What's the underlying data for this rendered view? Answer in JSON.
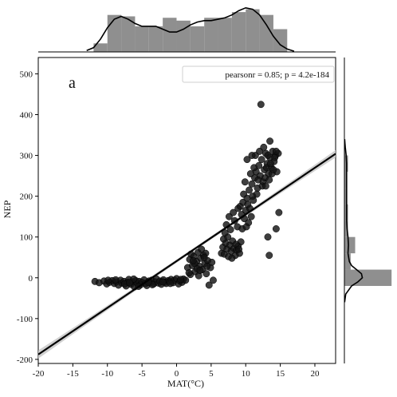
{
  "chart_data": {
    "type": "scatter",
    "panel_label": "a",
    "xlabel": "MAT(°C)",
    "ylabel": "NEP",
    "xlim": [
      -20,
      23
    ],
    "ylim": [
      -210,
      540
    ],
    "xticks": [
      -20,
      -15,
      -10,
      -5,
      0,
      5,
      10,
      15,
      20
    ],
    "yticks": [
      -200,
      -100,
      0,
      100,
      200,
      300,
      400,
      500
    ],
    "annotation": "pearsonr = 0.85; p = 4.2e-184",
    "legend_position": "top-right",
    "grid": false,
    "regression": {
      "x": [
        -20,
        23
      ],
      "y": [
        -188,
        304
      ]
    },
    "points": [
      [
        -11.8,
        -9
      ],
      [
        -11.2,
        -12
      ],
      [
        -10.5,
        -8
      ],
      [
        -10.1,
        -15
      ],
      [
        -9.7,
        -11
      ],
      [
        -9.3,
        -7
      ],
      [
        -9.0,
        -14
      ],
      [
        -8.7,
        -10
      ],
      [
        -8.4,
        -18
      ],
      [
        -8.1,
        -6
      ],
      [
        -7.9,
        -13
      ],
      [
        -7.6,
        -9
      ],
      [
        -7.3,
        -20
      ],
      [
        -7.1,
        -11
      ],
      [
        -6.9,
        -4
      ],
      [
        -6.6,
        -16
      ],
      [
        -6.4,
        -10
      ],
      [
        -6.1,
        -22
      ],
      [
        -5.9,
        -7
      ],
      [
        -5.7,
        -13
      ],
      [
        -5.4,
        -9
      ],
      [
        -5.2,
        -17
      ],
      [
        -5.0,
        -11
      ],
      [
        -4.7,
        -5
      ],
      [
        -4.5,
        -14
      ],
      [
        -4.3,
        -19
      ],
      [
        -4.0,
        -8
      ],
      [
        -3.8,
        -12
      ],
      [
        -3.6,
        -6
      ],
      [
        -3.3,
        -15
      ],
      [
        -3.1,
        -10
      ],
      [
        -2.9,
        -3
      ],
      [
        -2.6,
        -13
      ],
      [
        -2.4,
        -8
      ],
      [
        -2.2,
        -16
      ],
      [
        -1.9,
        -5
      ],
      [
        -1.7,
        -11
      ],
      [
        -1.5,
        -14
      ],
      [
        -1.2,
        -7
      ],
      [
        -1.0,
        -9
      ],
      [
        -0.8,
        -4
      ],
      [
        -0.5,
        -12
      ],
      [
        -0.3,
        -6
      ],
      [
        0.0,
        -2
      ],
      [
        0.3,
        -15
      ],
      [
        0.5,
        -8
      ],
      [
        0.8,
        -11
      ],
      [
        1.0,
        -3
      ],
      [
        1.3,
        -6
      ],
      [
        -8.8,
        -5
      ],
      [
        -7.5,
        -15
      ],
      [
        -6.2,
        -3
      ],
      [
        -5.5,
        -21
      ],
      [
        -3.5,
        -17
      ],
      [
        -2.0,
        -10
      ],
      [
        -0.9,
        -14
      ],
      [
        0.6,
        -4
      ],
      [
        -9.9,
        -6
      ],
      [
        -6.8,
        -12
      ],
      [
        -4.1,
        -11
      ],
      [
        1.6,
        25
      ],
      [
        1.9,
        45
      ],
      [
        2.1,
        58
      ],
      [
        2.3,
        30
      ],
      [
        2.5,
        52
      ],
      [
        2.7,
        15
      ],
      [
        2.9,
        40
      ],
      [
        3.1,
        62
      ],
      [
        3.3,
        28
      ],
      [
        3.5,
        48
      ],
      [
        3.7,
        20
      ],
      [
        3.9,
        55
      ],
      [
        4.1,
        35
      ],
      [
        4.3,
        10
      ],
      [
        4.5,
        42
      ],
      [
        4.7,
        -18
      ],
      [
        4.9,
        25
      ],
      [
        5.1,
        38
      ],
      [
        2.0,
        8
      ],
      [
        3.2,
        5
      ],
      [
        3.6,
        70
      ],
      [
        2.6,
        35
      ],
      [
        4.2,
        60
      ],
      [
        3.0,
        22
      ],
      [
        1.8,
        12
      ],
      [
        4.4,
        28
      ],
      [
        5.3,
        -6
      ],
      [
        4.0,
        50
      ],
      [
        2.4,
        42
      ],
      [
        3.4,
        18
      ],
      [
        6.5,
        60
      ],
      [
        6.7,
        75
      ],
      [
        6.9,
        58
      ],
      [
        7.1,
        85
      ],
      [
        7.3,
        70
      ],
      [
        7.5,
        52
      ],
      [
        7.7,
        80
      ],
      [
        7.9,
        65
      ],
      [
        8.1,
        90
      ],
      [
        8.3,
        72
      ],
      [
        8.5,
        55
      ],
      [
        8.7,
        68
      ],
      [
        8.9,
        78
      ],
      [
        9.1,
        60
      ],
      [
        9.3,
        88
      ],
      [
        6.8,
        95
      ],
      [
        7.4,
        100
      ],
      [
        8.0,
        48
      ],
      [
        8.6,
        82
      ],
      [
        9.0,
        70
      ],
      [
        7.0,
        110
      ],
      [
        7.2,
        130
      ],
      [
        7.6,
        150
      ],
      [
        7.8,
        118
      ],
      [
        8.2,
        160
      ],
      [
        8.4,
        140
      ],
      [
        8.8,
        125
      ],
      [
        9.2,
        175
      ],
      [
        9.4,
        155
      ],
      [
        9.6,
        185
      ],
      [
        9.8,
        145
      ],
      [
        10.0,
        165
      ],
      [
        10.2,
        195
      ],
      [
        10.4,
        135
      ],
      [
        10.6,
        170
      ],
      [
        10.8,
        150
      ],
      [
        11.0,
        200
      ],
      [
        9.5,
        120
      ],
      [
        10.1,
        125
      ],
      [
        8.9,
        170
      ],
      [
        9.7,
        205
      ],
      [
        10.3,
        180
      ],
      [
        10.5,
        215
      ],
      [
        10.9,
        230
      ],
      [
        11.1,
        190
      ],
      [
        11.3,
        245
      ],
      [
        11.5,
        260
      ],
      [
        11.7,
        220
      ],
      [
        11.9,
        275
      ],
      [
        12.1,
        250
      ],
      [
        12.3,
        290
      ],
      [
        12.5,
        235
      ],
      [
        12.7,
        265
      ],
      [
        12.9,
        305
      ],
      [
        13.1,
        280
      ],
      [
        13.3,
        255
      ],
      [
        13.5,
        295
      ],
      [
        13.7,
        270
      ],
      [
        13.9,
        310
      ],
      [
        14.1,
        285
      ],
      [
        14.3,
        300
      ],
      [
        14.5,
        260
      ],
      [
        14.7,
        305
      ],
      [
        11.2,
        270
      ],
      [
        11.4,
        300
      ],
      [
        11.8,
        240
      ],
      [
        12.0,
        310
      ],
      [
        12.4,
        225
      ],
      [
        12.6,
        320
      ],
      [
        12.8,
        245
      ],
      [
        13.0,
        270
      ],
      [
        13.2,
        300
      ],
      [
        13.4,
        240
      ],
      [
        13.6,
        280
      ],
      [
        13.8,
        255
      ],
      [
        14.0,
        265
      ],
      [
        14.2,
        295
      ],
      [
        14.4,
        310
      ],
      [
        10.7,
        255
      ],
      [
        10.9,
        300
      ],
      [
        9.9,
        235
      ],
      [
        10.2,
        290
      ],
      [
        12.2,
        425
      ],
      [
        13.5,
        335
      ],
      [
        13.2,
        100
      ],
      [
        13.4,
        55
      ],
      [
        14.8,
        160
      ],
      [
        14.4,
        120
      ],
      [
        11.6,
        205
      ],
      [
        12.9,
        225
      ]
    ],
    "marginal_x": {
      "bins": [
        -12,
        -10,
        -8,
        -6,
        -4,
        -2,
        0,
        2,
        4,
        6,
        8,
        10,
        12,
        14,
        16
      ],
      "counts": [
        6,
        26,
        25,
        18,
        18,
        24,
        22,
        18,
        24,
        24,
        28,
        30,
        26,
        16
      ],
      "kde": [
        [
          -13,
          1
        ],
        [
          -12,
          3
        ],
        [
          -11,
          9
        ],
        [
          -10,
          17
        ],
        [
          -9,
          23
        ],
        [
          -8,
          25
        ],
        [
          -7,
          23
        ],
        [
          -6,
          20
        ],
        [
          -5,
          18
        ],
        [
          -4,
          18
        ],
        [
          -3,
          18
        ],
        [
          -2,
          16
        ],
        [
          -1,
          14
        ],
        [
          0,
          14
        ],
        [
          1,
          16
        ],
        [
          2,
          19
        ],
        [
          3,
          21
        ],
        [
          4,
          22
        ],
        [
          5,
          22
        ],
        [
          6,
          23
        ],
        [
          7,
          24
        ],
        [
          8,
          26
        ],
        [
          9,
          29
        ],
        [
          10,
          31
        ],
        [
          11,
          30
        ],
        [
          12,
          26
        ],
        [
          13,
          19
        ],
        [
          14,
          11
        ],
        [
          15,
          5
        ],
        [
          16,
          2
        ],
        [
          17,
          0.5
        ]
      ]
    },
    "marginal_y": {
      "bins": [
        -20,
        20,
        60,
        100,
        140,
        180,
        220,
        260,
        300,
        340
      ],
      "counts": [
        105,
        14,
        24,
        8,
        8,
        4,
        5,
        8,
        2
      ],
      "kde": [
        [
          -60,
          0.5
        ],
        [
          -40,
          3
        ],
        [
          -20,
          16
        ],
        [
          -10,
          30
        ],
        [
          0,
          40
        ],
        [
          10,
          38
        ],
        [
          20,
          27
        ],
        [
          30,
          16
        ],
        [
          40,
          11
        ],
        [
          60,
          8
        ],
        [
          80,
          9
        ],
        [
          100,
          8
        ],
        [
          120,
          6
        ],
        [
          140,
          5
        ],
        [
          160,
          5
        ],
        [
          180,
          5
        ],
        [
          200,
          5
        ],
        [
          220,
          5
        ],
        [
          240,
          5
        ],
        [
          260,
          5
        ],
        [
          280,
          5
        ],
        [
          300,
          4
        ],
        [
          320,
          2
        ],
        [
          340,
          0.5
        ]
      ]
    },
    "colors": {
      "points": "#141414",
      "line": "#000000",
      "ci_band": "#c8c8c8",
      "hist": "#8f8f8f"
    }
  }
}
